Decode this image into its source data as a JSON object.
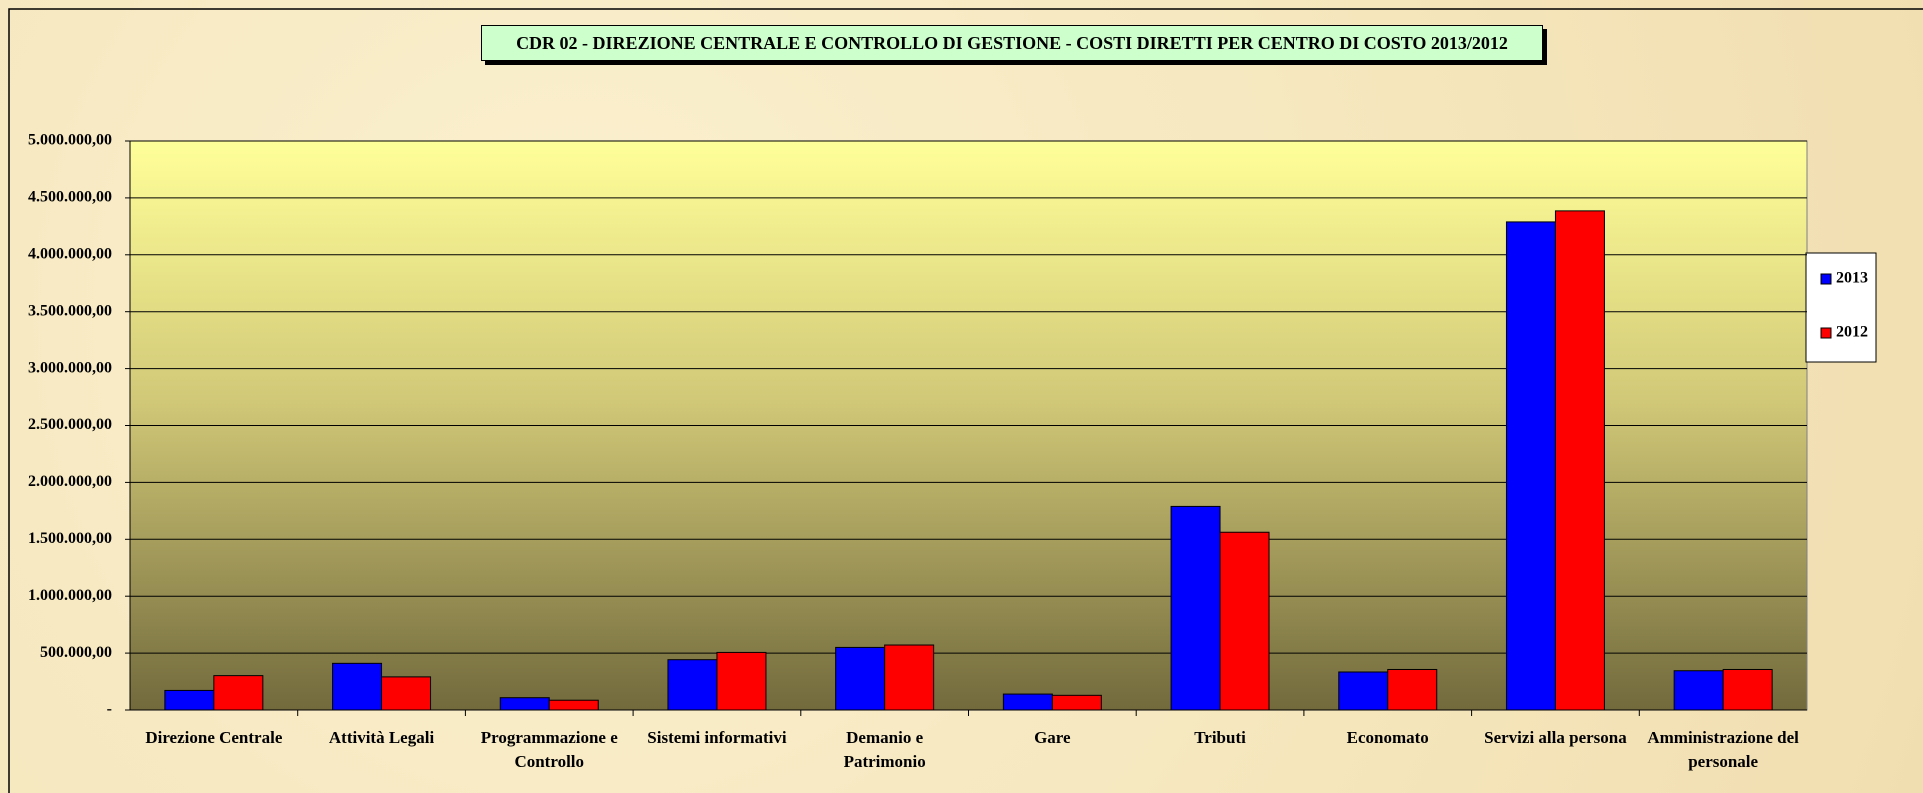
{
  "chart_data": {
    "type": "bar",
    "title": "CDR 02 - DIREZIONE CENTRALE E CONTROLLO DI GESTIONE - COSTI DIRETTI PER CENTRO DI COSTO 2013/2012",
    "categories": [
      "Direzione Centrale",
      "Attività Legali",
      "Programmazione e Controllo",
      "Sistemi informativi",
      "Demanio e Patrimonio",
      "Gare",
      "Tributi",
      "Economato",
      "Servizi alla persona",
      "Amministrazione del personale"
    ],
    "series": [
      {
        "name": "2013",
        "color": "#0000ff",
        "values": [
          172000,
          410000,
          108000,
          442000,
          550000,
          140000,
          1789000,
          334000,
          4289000,
          345000
        ]
      },
      {
        "name": "2012",
        "color": "#ff0000",
        "values": [
          302000,
          291000,
          86000,
          506000,
          571000,
          129000,
          1562000,
          356000,
          4386000,
          356000
        ]
      }
    ],
    "ylim": [
      0,
      5000000
    ],
    "yticks": [
      {
        "value": 0,
        "label": "-"
      },
      {
        "value": 500000,
        "label": "500.000,00"
      },
      {
        "value": 1000000,
        "label": "1.000.000,00"
      },
      {
        "value": 1500000,
        "label": "1.500.000,00"
      },
      {
        "value": 2000000,
        "label": "2.000.000,00"
      },
      {
        "value": 2500000,
        "label": "2.500.000,00"
      },
      {
        "value": 3000000,
        "label": "3.000.000,00"
      },
      {
        "value": 3500000,
        "label": "3.500.000,00"
      },
      {
        "value": 4000000,
        "label": "4.000.000,00"
      },
      {
        "value": 4500000,
        "label": "4.500.000,00"
      },
      {
        "value": 5000000,
        "label": "5.000.000,00"
      }
    ],
    "grid": true,
    "legend": "right"
  }
}
